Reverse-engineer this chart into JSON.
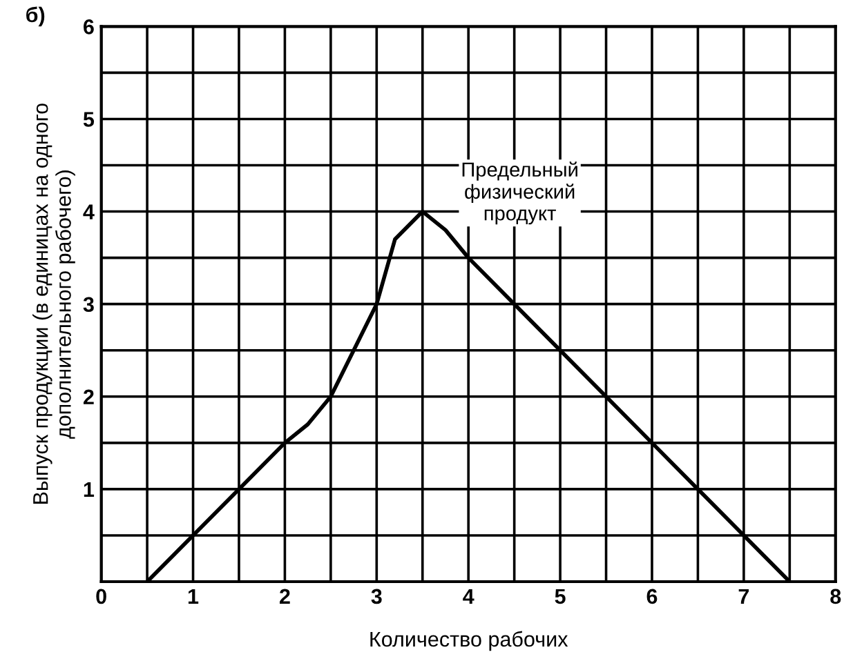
{
  "chart_data": {
    "type": "line",
    "xlabel": "Количество рабочих",
    "ylabel": "Выпуск продукции (в единицах на одного\nдополнительного рабочего)",
    "x": [
      0.5,
      1,
      1.5,
      2,
      2.25,
      2.5,
      2.75,
      3,
      3.2,
      3.5,
      3.75,
      4,
      4.5,
      5,
      5.5,
      6,
      6.5,
      7,
      7.5
    ],
    "series": [
      {
        "color": "#000000",
        "values": [
          0,
          0.5,
          1,
          1.5,
          1.7,
          2,
          2.5,
          3,
          3.7,
          4,
          3.8,
          3.5,
          3,
          2.5,
          2,
          1.5,
          1,
          0.5,
          0
        ]
      }
    ],
    "xlim": [
      0,
      8
    ],
    "ylim": [
      0,
      6
    ],
    "xticks": [
      0,
      {
        "value": 0.5,
        "label": null
      },
      1,
      {
        "value": 1.5,
        "label": null
      },
      2,
      {
        "value": 2.5,
        "label": null
      },
      3,
      {
        "value": 3.5,
        "label": null
      },
      4,
      {
        "value": 4.5,
        "label": null
      },
      5,
      {
        "value": 5.5,
        "label": null
      },
      6,
      {
        "value": 6.5,
        "label": null
      },
      7,
      {
        "value": 7.5,
        "label": null
      },
      8
    ],
    "yticks": [
      {
        "value": 0,
        "label": null
      },
      {
        "value": 0.5,
        "label": null
      },
      1,
      {
        "value": 1.5,
        "label": null
      },
      2,
      {
        "value": 2.5,
        "label": null
      },
      3,
      {
        "value": 3.5,
        "label": null
      },
      4,
      {
        "value": 4.5,
        "label": null
      },
      5,
      {
        "value": 5.5,
        "label": null
      },
      6
    ],
    "grid": true,
    "marker": "none",
    "line_style": "solid",
    "annotations": [
      "Предельный\nфизический\nпродукт",
      "б)"
    ]
  }
}
